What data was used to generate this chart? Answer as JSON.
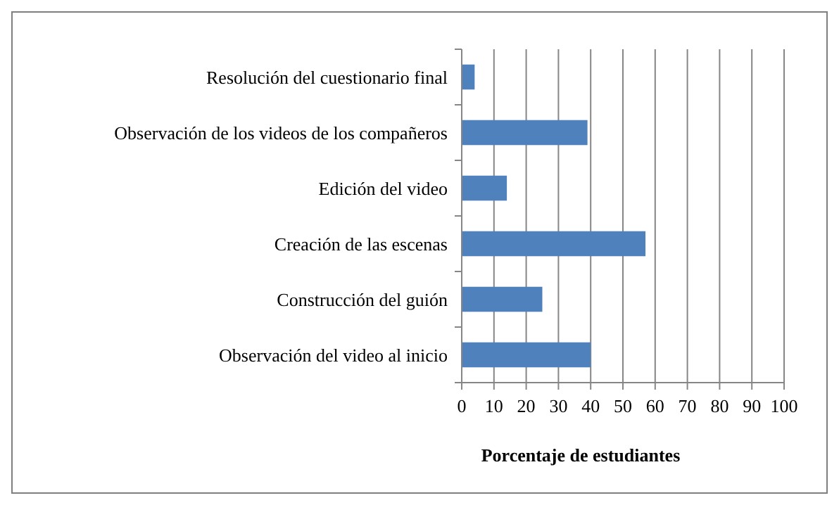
{
  "chart_data": {
    "type": "bar",
    "orientation": "horizontal",
    "categories": [
      "Resolución del cuestionario final",
      "Observación de los videos de los compañeros",
      "Edición del video",
      "Creación de las escenas",
      "Construcción del guión",
      "Observación del video al inicio"
    ],
    "values": [
      4,
      39,
      14,
      57,
      25,
      40
    ],
    "color": "#4f81bd",
    "xlabel": "Porcentaje de estudiantes",
    "xlim": [
      0,
      100
    ],
    "xticks": [
      0,
      10,
      20,
      30,
      40,
      50,
      60,
      70,
      80,
      90,
      100
    ],
    "grid": "x"
  }
}
